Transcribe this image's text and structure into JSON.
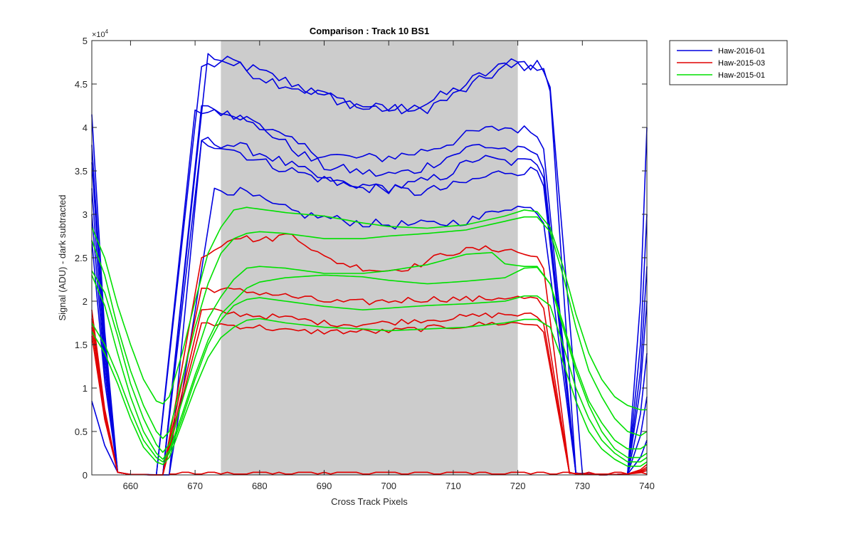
{
  "chart_data": {
    "type": "line",
    "title": "Comparison : Track 10  BS1",
    "xlabel": "Cross Track Pixels",
    "ylabel": "Signal (ADU) - dark subtracted",
    "xlim": [
      654,
      740
    ],
    "ylim": [
      0,
      50000
    ],
    "y_exponent_label": "×10^4",
    "x_ticks": [
      660,
      670,
      680,
      690,
      700,
      710,
      720,
      730,
      740
    ],
    "y_ticks": [
      0,
      0.5,
      1,
      1.5,
      2,
      2.5,
      3,
      3.5,
      4,
      4.5,
      5
    ],
    "shaded_region": {
      "x0": 674,
      "x1": 720,
      "color": "#cccccc"
    },
    "legend": [
      {
        "label": "Haw-2016-01",
        "color": "#0000e0"
      },
      {
        "label": "Haw-2015-03",
        "color": "#e00000"
      },
      {
        "label": "Haw-2015-01",
        "color": "#00e000"
      }
    ],
    "series": [
      {
        "name": "Haw-2016-01",
        "color": "#0000e0",
        "rise_start": 664,
        "rise_end": 671,
        "fall_start": 725,
        "fall_end": 729,
        "plateau": [
          47000,
          47600,
          46200,
          45000,
          43500,
          42500,
          42000,
          42500,
          44000,
          46000,
          47500,
          46500
        ],
        "left_edge": 41500,
        "right_edge": 40000,
        "noise": 700
      },
      {
        "name": "Haw-2016-01",
        "color": "#0000e0",
        "rise_start": 665,
        "rise_end": 672,
        "fall_start": 725,
        "fall_end": 730,
        "plateau": [
          48500,
          47000,
          45500,
          44500,
          43500,
          42500,
          42000,
          42000,
          43500,
          45500,
          47500,
          47000
        ],
        "left_edge": 38000,
        "right_edge": 30000,
        "noise": 700
      },
      {
        "name": "Haw-2016-01",
        "color": "#0000e0",
        "rise_start": 664,
        "rise_end": 670,
        "fall_start": 724,
        "fall_end": 729,
        "plateau": [
          42000,
          41500,
          40500,
          38500,
          37000,
          36500,
          36500,
          37000,
          38000,
          39500,
          40000,
          39500
        ],
        "left_edge": 36000,
        "right_edge": 24000,
        "noise": 600
      },
      {
        "name": "Haw-2016-01",
        "color": "#0000e0",
        "rise_start": 665,
        "rise_end": 671,
        "fall_start": 724,
        "fall_end": 729,
        "plateau": [
          42500,
          41800,
          40000,
          37500,
          35500,
          35000,
          34500,
          35000,
          36500,
          38000,
          37500,
          37000
        ],
        "left_edge": 33000,
        "right_edge": 20000,
        "noise": 600
      },
      {
        "name": "Haw-2016-01",
        "color": "#0000e0",
        "rise_start": 665,
        "rise_end": 671,
        "fall_start": 724,
        "fall_end": 729,
        "plateau": [
          38500,
          38000,
          37000,
          35500,
          34000,
          33000,
          33000,
          33500,
          34500,
          36500,
          36000,
          36000
        ],
        "left_edge": 30000,
        "right_edge": 14000,
        "noise": 600
      },
      {
        "name": "Haw-2016-01",
        "color": "#0000e0",
        "rise_start": 666,
        "rise_end": 671,
        "fall_start": 724,
        "fall_end": 729,
        "plateau": [
          38500,
          37500,
          36000,
          35000,
          34000,
          33500,
          33000,
          32500,
          33000,
          34000,
          35000,
          35000
        ],
        "left_edge": 27000,
        "right_edge": 9000,
        "noise": 600
      },
      {
        "name": "Haw-2016-01",
        "color": "#0000e0",
        "rise_start": 666,
        "rise_end": 673,
        "fall_start": 724,
        "fall_end": 729,
        "plateau": [
          33000,
          32500,
          31000,
          30000,
          29500,
          29000,
          28800,
          28800,
          29000,
          29500,
          31000,
          30500
        ],
        "left_edge": 8500,
        "right_edge": 4000,
        "noise": 550
      },
      {
        "name": "Haw-2015-03",
        "color": "#e00000",
        "rise_start": 665,
        "rise_end": 671,
        "fall_start": 724,
        "fall_end": 728,
        "plateau": [
          25000,
          27500,
          27000,
          27800,
          25000,
          24000,
          23500,
          24000,
          25500,
          26000,
          26000,
          25000
        ],
        "left_edge": 19000,
        "right_edge": 1200,
        "noise": 400
      },
      {
        "name": "Haw-2015-03",
        "color": "#e00000",
        "rise_start": 665,
        "rise_end": 671,
        "fall_start": 724,
        "fall_end": 728,
        "plateau": [
          21500,
          21200,
          21000,
          20500,
          20000,
          19800,
          20000,
          20200,
          20300,
          20200,
          20500,
          20200
        ],
        "left_edge": 18000,
        "right_edge": 900,
        "noise": 400
      },
      {
        "name": "Haw-2015-03",
        "color": "#e00000",
        "rise_start": 665,
        "rise_end": 671,
        "fall_start": 724,
        "fall_end": 728,
        "plateau": [
          19000,
          18600,
          18300,
          18000,
          17500,
          17300,
          17500,
          17800,
          18000,
          18300,
          18500,
          18300
        ],
        "left_edge": 17000,
        "right_edge": 700,
        "noise": 350
      },
      {
        "name": "Haw-2015-03",
        "color": "#e00000",
        "rise_start": 665,
        "rise_end": 671,
        "fall_start": 724,
        "fall_end": 728,
        "plateau": [
          17500,
          17200,
          17000,
          16500,
          16500,
          16500,
          16500,
          16800,
          17000,
          17300,
          17500,
          17300
        ],
        "left_edge": 16000,
        "right_edge": 500,
        "noise": 350
      },
      {
        "name": "Haw-2015-03",
        "color": "#e00000",
        "flat": true,
        "value": 100
      },
      {
        "name": "Haw-2015-01",
        "color": "#00e000",
        "smooth": true,
        "points": [
          [
            654,
            28500
          ],
          [
            656,
            25000
          ],
          [
            658,
            19500
          ],
          [
            660,
            15000
          ],
          [
            662,
            11000
          ],
          [
            664,
            8500
          ],
          [
            665,
            8200
          ],
          [
            666,
            9000
          ],
          [
            668,
            14000
          ],
          [
            670,
            20000
          ],
          [
            672,
            25500
          ],
          [
            674,
            28500
          ],
          [
            676,
            30500
          ],
          [
            678,
            30800
          ],
          [
            680,
            30600
          ],
          [
            684,
            30200
          ],
          [
            690,
            29800
          ],
          [
            696,
            29000
          ],
          [
            700,
            28600
          ],
          [
            706,
            28400
          ],
          [
            712,
            28800
          ],
          [
            718,
            29800
          ],
          [
            721,
            30500
          ],
          [
            723,
            30300
          ],
          [
            725,
            28500
          ],
          [
            727,
            24000
          ],
          [
            729,
            18500
          ],
          [
            731,
            14000
          ],
          [
            733,
            11000
          ],
          [
            735,
            9000
          ],
          [
            737,
            8000
          ],
          [
            739,
            7500
          ],
          [
            740,
            7500
          ]
        ]
      },
      {
        "name": "Haw-2015-01",
        "color": "#00e000",
        "smooth": true,
        "points": [
          [
            654,
            27000
          ],
          [
            656,
            23000
          ],
          [
            658,
            17000
          ],
          [
            660,
            12000
          ],
          [
            662,
            8000
          ],
          [
            664,
            5000
          ],
          [
            665,
            4200
          ],
          [
            666,
            5000
          ],
          [
            668,
            11000
          ],
          [
            670,
            17000
          ],
          [
            672,
            22000
          ],
          [
            674,
            25500
          ],
          [
            676,
            27200
          ],
          [
            678,
            27800
          ],
          [
            680,
            28000
          ],
          [
            684,
            27800
          ],
          [
            690,
            27200
          ],
          [
            696,
            27200
          ],
          [
            700,
            27500
          ],
          [
            706,
            27800
          ],
          [
            712,
            28200
          ],
          [
            718,
            29200
          ],
          [
            721,
            29700
          ],
          [
            723,
            29700
          ],
          [
            725,
            28000
          ],
          [
            727,
            23000
          ],
          [
            729,
            17000
          ],
          [
            731,
            12000
          ],
          [
            733,
            9000
          ],
          [
            735,
            6500
          ],
          [
            737,
            5000
          ],
          [
            739,
            4500
          ],
          [
            740,
            5000
          ]
        ]
      },
      {
        "name": "Haw-2015-01",
        "color": "#00e000",
        "smooth": true,
        "points": [
          [
            654,
            23500
          ],
          [
            656,
            21000
          ],
          [
            658,
            16000
          ],
          [
            660,
            10500
          ],
          [
            662,
            6500
          ],
          [
            664,
            3500
          ],
          [
            665,
            2600
          ],
          [
            666,
            3500
          ],
          [
            668,
            8500
          ],
          [
            670,
            13500
          ],
          [
            672,
            18000
          ],
          [
            674,
            20500
          ],
          [
            676,
            22500
          ],
          [
            678,
            23800
          ],
          [
            680,
            24000
          ],
          [
            684,
            23800
          ],
          [
            690,
            23200
          ],
          [
            696,
            23200
          ],
          [
            700,
            23500
          ],
          [
            706,
            24200
          ],
          [
            712,
            25400
          ],
          [
            716,
            25600
          ],
          [
            718,
            24300
          ],
          [
            721,
            24000
          ],
          [
            723,
            24000
          ],
          [
            725,
            22000
          ],
          [
            727,
            17500
          ],
          [
            729,
            12500
          ],
          [
            731,
            8500
          ],
          [
            733,
            6000
          ],
          [
            735,
            4000
          ],
          [
            737,
            3000
          ],
          [
            739,
            3000
          ],
          [
            740,
            3500
          ]
        ]
      },
      {
        "name": "Haw-2015-01",
        "color": "#00e000",
        "smooth": true,
        "points": [
          [
            654,
            23000
          ],
          [
            656,
            19500
          ],
          [
            658,
            14000
          ],
          [
            660,
            9000
          ],
          [
            662,
            5000
          ],
          [
            664,
            2500
          ],
          [
            665,
            1800
          ],
          [
            666,
            2800
          ],
          [
            668,
            7000
          ],
          [
            670,
            11500
          ],
          [
            672,
            15500
          ],
          [
            674,
            18500
          ],
          [
            676,
            20000
          ],
          [
            678,
            21500
          ],
          [
            680,
            22200
          ],
          [
            684,
            22700
          ],
          [
            690,
            23000
          ],
          [
            696,
            22800
          ],
          [
            700,
            22400
          ],
          [
            706,
            22000
          ],
          [
            712,
            22300
          ],
          [
            718,
            22700
          ],
          [
            721,
            23800
          ],
          [
            723,
            23900
          ],
          [
            725,
            22000
          ],
          [
            727,
            17000
          ],
          [
            729,
            12000
          ],
          [
            731,
            8000
          ],
          [
            733,
            5000
          ],
          [
            735,
            3000
          ],
          [
            737,
            2000
          ],
          [
            739,
            2000
          ],
          [
            740,
            2500
          ]
        ]
      },
      {
        "name": "Haw-2015-01",
        "color": "#00e000",
        "smooth": true,
        "points": [
          [
            654,
            17500
          ],
          [
            656,
            15000
          ],
          [
            658,
            11500
          ],
          [
            660,
            7500
          ],
          [
            662,
            4000
          ],
          [
            664,
            2000
          ],
          [
            665,
            1500
          ],
          [
            666,
            2500
          ],
          [
            668,
            6500
          ],
          [
            670,
            11000
          ],
          [
            672,
            15000
          ],
          [
            674,
            17800
          ],
          [
            676,
            19500
          ],
          [
            678,
            20200
          ],
          [
            680,
            20400
          ],
          [
            684,
            20000
          ],
          [
            690,
            19400
          ],
          [
            696,
            19000
          ],
          [
            700,
            19200
          ],
          [
            706,
            19500
          ],
          [
            712,
            19700
          ],
          [
            718,
            20000
          ],
          [
            721,
            20600
          ],
          [
            723,
            20600
          ],
          [
            725,
            19500
          ],
          [
            727,
            15000
          ],
          [
            729,
            10000
          ],
          [
            731,
            6500
          ],
          [
            733,
            4000
          ],
          [
            735,
            2500
          ],
          [
            737,
            1500
          ],
          [
            739,
            1500
          ],
          [
            740,
            2000
          ]
        ]
      },
      {
        "name": "Haw-2015-01",
        "color": "#00e000",
        "smooth": true,
        "points": [
          [
            654,
            16500
          ],
          [
            656,
            14000
          ],
          [
            658,
            10500
          ],
          [
            660,
            6500
          ],
          [
            662,
            3200
          ],
          [
            664,
            1500
          ],
          [
            665,
            1200
          ],
          [
            666,
            2000
          ],
          [
            668,
            6000
          ],
          [
            670,
            10000
          ],
          [
            672,
            13500
          ],
          [
            674,
            15800
          ],
          [
            676,
            17000
          ],
          [
            678,
            17800
          ],
          [
            680,
            18000
          ],
          [
            684,
            17500
          ],
          [
            690,
            17000
          ],
          [
            696,
            16800
          ],
          [
            700,
            16600
          ],
          [
            706,
            16800
          ],
          [
            712,
            17000
          ],
          [
            718,
            17500
          ],
          [
            721,
            17900
          ],
          [
            723,
            17900
          ],
          [
            725,
            17000
          ],
          [
            727,
            13000
          ],
          [
            729,
            8500
          ],
          [
            731,
            5000
          ],
          [
            733,
            3000
          ],
          [
            735,
            1800
          ],
          [
            737,
            1000
          ],
          [
            739,
            1000
          ],
          [
            740,
            1500
          ]
        ]
      }
    ]
  }
}
